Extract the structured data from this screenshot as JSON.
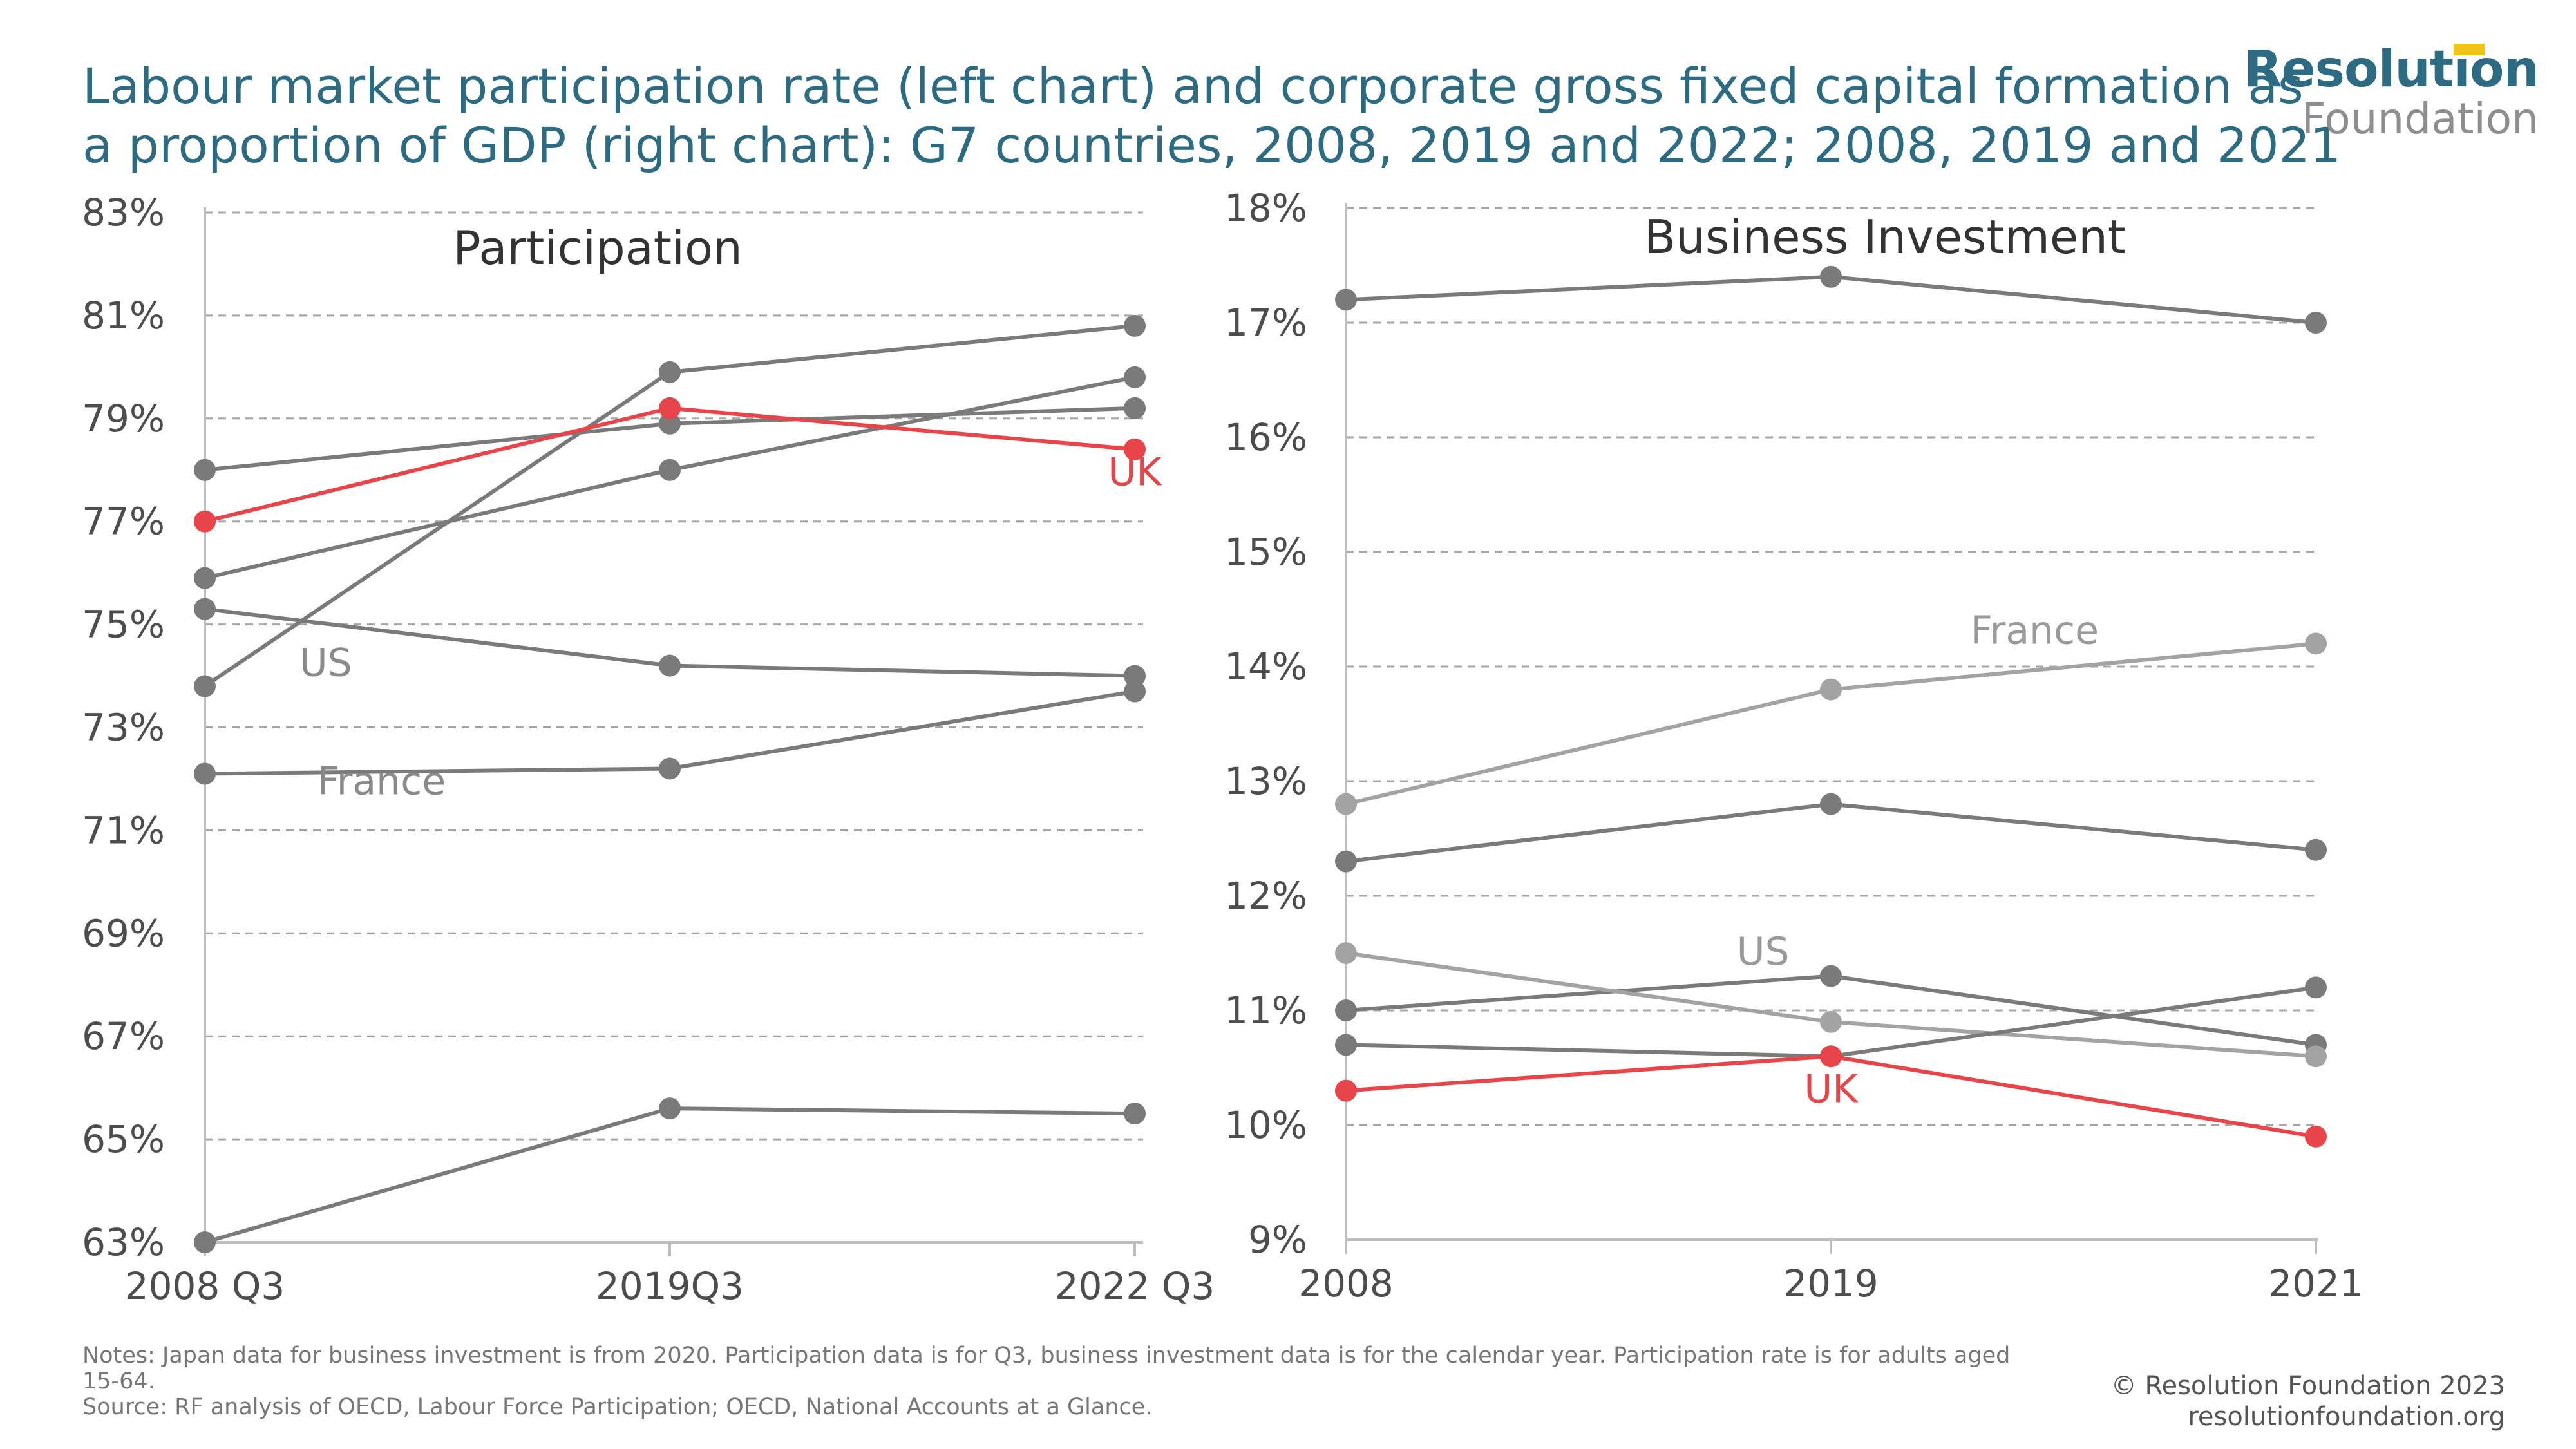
{
  "title_lines": [
    "Labour market participation rate (left chart) and corporate gross fixed capital formation as",
    "a proportion of GDP (right chart): G7 countries, 2008, 2019 and 2022; 2008, 2019 and 2021"
  ],
  "logo": {
    "line1": "Resolution",
    "line2": "Foundation"
  },
  "notes": [
    "Notes: Japan data for business investment is from 2020. Participation data is for Q3, business investment data is for the calendar year. Participation rate is for adults aged",
    "15-64.",
    "Source: RF analysis of OECD, Labour Force Participation; OECD, National Accounts at a Glance."
  ],
  "credit": {
    "copyright": "© Resolution Foundation 2023",
    "website": "resolutionfoundation.org"
  },
  "colors": {
    "title": "#2c6b82",
    "grid": "#a6a6a6",
    "axis": "#bfbfbf",
    "highlight": "#e8454a",
    "series_dark": "#7a7a7a",
    "series_light": "#a3a3a3",
    "label_grey": "#9a9a9a"
  },
  "chart_data": [
    {
      "type": "line",
      "title": "Participation",
      "categories": [
        "2008 Q3",
        "2019Q3",
        "2022 Q3"
      ],
      "ylim": [
        63,
        83
      ],
      "yticks": [
        63,
        65,
        67,
        69,
        71,
        73,
        75,
        77,
        79,
        81,
        83
      ],
      "ytick_suffix": "%",
      "grid": true,
      "series": [
        {
          "name": "UK",
          "values": [
            77.0,
            79.2,
            78.4
          ],
          "color": "#e8454a",
          "highlight": true
        },
        {
          "values": [
            78.0,
            78.9,
            79.2
          ],
          "color": "#7a7a7a"
        },
        {
          "values": [
            73.8,
            79.9,
            80.8
          ],
          "color": "#7a7a7a"
        },
        {
          "values": [
            75.9,
            78.0,
            79.8
          ],
          "color": "#7a7a7a"
        },
        {
          "name": "US",
          "values": [
            75.3,
            74.2,
            74.0
          ],
          "color": "#7a7a7a"
        },
        {
          "name": "France",
          "values": [
            72.1,
            72.2,
            73.7
          ],
          "color": "#7a7a7a"
        },
        {
          "values": [
            63.0,
            65.6,
            65.5
          ],
          "color": "#7a7a7a"
        }
      ],
      "annotations": [
        {
          "text": "UK",
          "x": "2022 Q3",
          "y": 77.7,
          "color": "#e8454a"
        },
        {
          "text": "US",
          "x": "2008 Q3",
          "y": 74.0,
          "dx": 0.26,
          "color": "#8a8a8a"
        },
        {
          "text": "France",
          "x": "2008 Q3",
          "y": 71.7,
          "dx": 0.38,
          "color": "#8a8a8a"
        }
      ]
    },
    {
      "type": "line",
      "title": "Business Investment",
      "categories": [
        "2008",
        "2019",
        "2021"
      ],
      "ylim": [
        9,
        18
      ],
      "yticks": [
        9,
        10,
        11,
        12,
        13,
        14,
        15,
        16,
        17,
        18
      ],
      "ytick_suffix": "%",
      "grid": true,
      "series": [
        {
          "name": "UK",
          "values": [
            10.3,
            10.6,
            9.9
          ],
          "color": "#e8454a",
          "highlight": true
        },
        {
          "values": [
            17.2,
            17.4,
            17.0
          ],
          "color": "#7a7a7a"
        },
        {
          "name": "France",
          "values": [
            12.8,
            13.8,
            14.2
          ],
          "color": "#a3a3a3"
        },
        {
          "values": [
            12.3,
            12.8,
            12.4
          ],
          "color": "#7a7a7a"
        },
        {
          "name": "US",
          "values": [
            11.0,
            11.3,
            10.7
          ],
          "color": "#7a7a7a"
        },
        {
          "values": [
            11.5,
            10.9,
            10.6
          ],
          "color": "#a3a3a3"
        },
        {
          "values": [
            10.7,
            10.6,
            11.2
          ],
          "color": "#7a7a7a"
        }
      ],
      "annotations": [
        {
          "text": "France",
          "x": "2019",
          "y": 14.2,
          "dx": 0.42,
          "color": "#9a9a9a"
        },
        {
          "text": "US",
          "x": "2008",
          "y": 11.4,
          "dx": 0.86,
          "color": "#9a9a9a"
        },
        {
          "text": "UK",
          "x": "2019",
          "y": 10.2,
          "color": "#e8454a"
        }
      ]
    }
  ]
}
